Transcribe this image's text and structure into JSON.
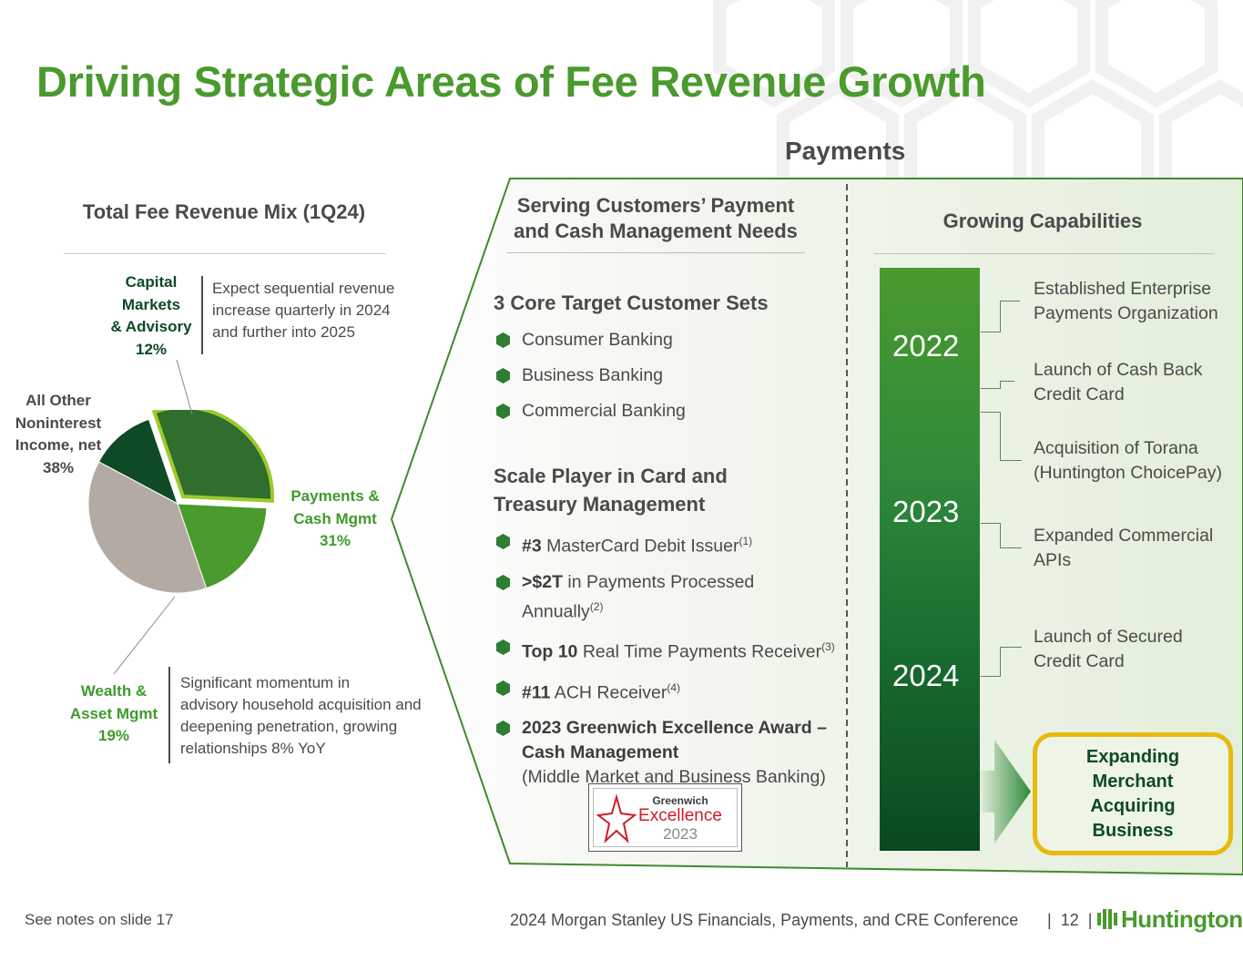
{
  "title": "Driving Strategic Areas of Fee Revenue Growth",
  "payments_heading": "Payments",
  "fee_mix": {
    "title": "Total Fee Revenue Mix (1Q24)",
    "segments": {
      "capital_markets": {
        "name_lines": [
          "Capital",
          "Markets",
          "& Advisory"
        ],
        "pct": "12%",
        "note": [
          "Expect sequential revenue",
          "increase quarterly in 2024",
          "and further into 2025"
        ]
      },
      "all_other": {
        "name_lines": [
          "All Other",
          "Noninterest",
          "Income, net"
        ],
        "pct": "38%"
      },
      "payments": {
        "name_lines": [
          "Payments &",
          "Cash Mgmt"
        ],
        "pct": "31%"
      },
      "wealth": {
        "name_lines": [
          "Wealth &",
          "Asset Mgmt"
        ],
        "pct": "19%",
        "note": [
          "Significant momentum in",
          "advisory household acquisition and",
          "deepening penetration, growing",
          "relationships 8% YoY"
        ]
      }
    }
  },
  "chart_data": {
    "type": "pie",
    "title": "Total Fee Revenue Mix (1Q24)",
    "categories": [
      "Capital Markets & Advisory",
      "Payments & Cash Mgmt",
      "Wealth & Asset Mgmt",
      "All Other Noninterest Income, net"
    ],
    "values": [
      12,
      31,
      19,
      38
    ],
    "colors": [
      "#0d4a25",
      "#2f6e2c",
      "#4a9a2e",
      "#b3aba3"
    ],
    "exploded": "Payments & Cash Mgmt",
    "unit": "%"
  },
  "serving": {
    "heading_lines": [
      "Serving Customers’ Payment",
      "and Cash Management Needs"
    ],
    "core_heading": "3 Core Target Customer Sets",
    "core_items": [
      "Consumer Banking",
      "Business Banking",
      "Commercial Banking"
    ],
    "scale_heading_lines": [
      "Scale Player in Card and",
      "Treasury Management"
    ],
    "scale_items": [
      {
        "bold": "#3",
        "text": " MasterCard Debit Issuer",
        "sup": "(1)"
      },
      {
        "bold": ">$2T",
        "text": " in Payments Processed",
        "text2": "Annually",
        "sup": "(2)"
      },
      {
        "bold": "Top 10",
        "text": " Real Time Payments Receiver",
        "sup": "(3)"
      },
      {
        "bold": "#11",
        "text": " ACH Receiver",
        "sup": "(4)"
      },
      {
        "bold": "2023 Greenwich Excellence Award –",
        "bold2": "Cash Management",
        "text": "(Middle Market and Business Banking)"
      }
    ],
    "badge": {
      "line1": "Greenwich",
      "line2": "Excellence",
      "line3": "2023"
    }
  },
  "growing": {
    "heading": "Growing Capabilities",
    "years": [
      "2022",
      "2023",
      "2024"
    ],
    "capabilities": [
      [
        "Established Enterprise",
        "Payments Organization"
      ],
      [
        "Launch of Cash Back",
        "Credit Card"
      ],
      [
        "Acquisition of Torana",
        "(Huntington ChoicePay)"
      ],
      [
        "Expanded Commercial",
        "APIs"
      ],
      [
        "Launch of Secured",
        "Credit Card"
      ]
    ],
    "merchant_lines": [
      "Expanding",
      "Merchant",
      "Acquiring",
      "Business"
    ]
  },
  "footer": {
    "notes": "See notes on slide 17",
    "conference": "2024 Morgan Stanley US Financials, Payments, and CRE Conference",
    "page_number": "12",
    "logo_text": "Huntington"
  }
}
